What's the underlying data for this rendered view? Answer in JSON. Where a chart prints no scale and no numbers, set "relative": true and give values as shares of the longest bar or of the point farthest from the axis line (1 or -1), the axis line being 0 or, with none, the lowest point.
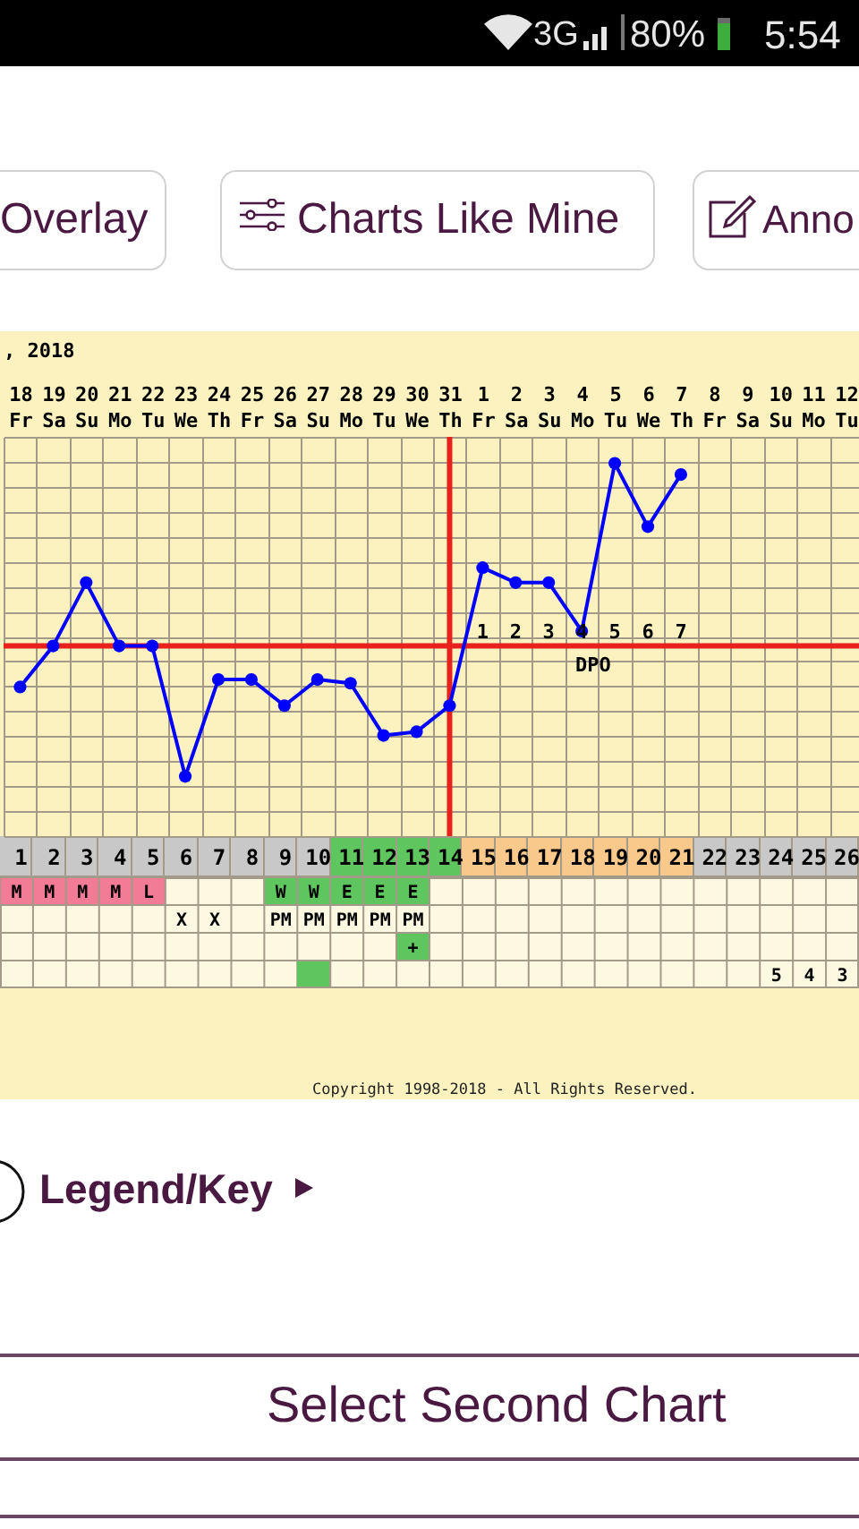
{
  "chart_data": [
    {
      "type": "line",
      "title": ", 2018",
      "x": [
        1,
        2,
        3,
        4,
        5,
        6,
        7,
        8,
        9,
        10,
        11,
        12,
        13,
        14,
        15,
        16,
        17,
        18,
        19,
        20,
        21
      ],
      "values": [
        0.4,
        0.51,
        0.68,
        0.51,
        0.51,
        0.16,
        0.42,
        0.42,
        0.35,
        0.42,
        0.41,
        0.27,
        0.28,
        0.35,
        0.72,
        0.68,
        0.68,
        0.55,
        1,
        0.83,
        0.97
      ],
      "xlim": [
        0.5,
        26.5
      ],
      "xticks": [
        1,
        2,
        3,
        4,
        5,
        6,
        7,
        8,
        9,
        10,
        11,
        12,
        13,
        14,
        15,
        16,
        17,
        18,
        19,
        20,
        21,
        22,
        23,
        24,
        25,
        26
      ],
      "x2lim": [
        "2018-05-17T12:00",
        "2018-06-12T12:00"
      ],
      "x2ticks": [
        {
          "value": "2018-05-18",
          "label": "18 Fr"
        },
        {
          "value": "2018-05-19",
          "label": "19 Sa"
        },
        {
          "value": "2018-05-20",
          "label": "20 Su"
        },
        {
          "value": "2018-05-21",
          "label": "21 Mo"
        },
        {
          "value": "2018-05-22",
          "label": "22 Tu"
        },
        {
          "value": "2018-05-23",
          "label": "23 We"
        },
        {
          "value": "2018-05-24",
          "label": "24 Th"
        },
        {
          "value": "2018-05-25",
          "label": "25 Fr"
        },
        {
          "value": "2018-05-26",
          "label": "26 Sa"
        },
        {
          "value": "2018-05-27",
          "label": "27 Su"
        },
        {
          "value": "2018-05-28",
          "label": "28 Mo"
        },
        {
          "value": "2018-05-29",
          "label": "29 Tu"
        },
        {
          "value": "2018-05-30",
          "label": "30 We"
        },
        {
          "value": "2018-05-31",
          "label": "31 Th"
        },
        {
          "value": "2018-06-01",
          "label": "1 Fr"
        },
        {
          "value": "2018-06-02",
          "label": "2 Sa"
        },
        {
          "value": "2018-06-03",
          "label": "3 Su"
        },
        {
          "value": "2018-06-04",
          "label": "4 Mo"
        },
        {
          "value": "2018-06-05",
          "label": "5 Tu"
        },
        {
          "value": "2018-06-06",
          "label": "6 We"
        },
        {
          "value": "2018-06-07",
          "label": "7 Th"
        },
        {
          "value": "2018-06-08",
          "label": "8 Fr"
        },
        {
          "value": "2018-06-09",
          "label": "9 Sa"
        },
        {
          "value": "2018-06-10",
          "label": "10 Su"
        },
        {
          "value": "2018-06-11",
          "label": "11 Mo"
        },
        {
          "value": "2018-06-12",
          "label": "12 Tu"
        }
      ],
      "color": "#0000ff",
      "relative": true,
      "marker": "circle",
      "grid": true,
      "ref_lines": [
        {
          "axis": "y",
          "value": 0.51,
          "color": "#e8211c"
        },
        {
          "axis": "x",
          "value": 14,
          "color": "#e8211c"
        }
      ],
      "annotations": [
        "1",
        "2",
        "3",
        "4",
        "5",
        "6",
        "7",
        "DPO"
      ]
    },
    {
      "type": "other",
      "cell_labels": [
        [
          null,
          null,
          null,
          null,
          null,
          null,
          null,
          null,
          null,
          null,
          null,
          null,
          null,
          null,
          null,
          null,
          null,
          null,
          null,
          null,
          null,
          null,
          null,
          null,
          null,
          null
        ],
        [
          "M",
          "M",
          "M",
          "M",
          "L",
          null,
          null,
          null,
          "W",
          "W",
          "E",
          "E",
          "E",
          null,
          null,
          null,
          null,
          null,
          null,
          null,
          null,
          null,
          null,
          null,
          null,
          null
        ],
        [
          null,
          null,
          null,
          null,
          null,
          "X",
          "X",
          null,
          "PM",
          "PM",
          "PM",
          "PM",
          "PM",
          null,
          null,
          null,
          null,
          null,
          null,
          null,
          null,
          null,
          null,
          null,
          null,
          null
        ],
        [
          null,
          null,
          null,
          null,
          null,
          null,
          null,
          null,
          null,
          null,
          null,
          null,
          "+",
          null,
          null,
          null,
          null,
          null,
          null,
          null,
          null,
          null,
          null,
          null,
          null,
          null
        ],
        [
          null,
          null,
          null,
          null,
          null,
          null,
          null,
          null,
          null,
          null,
          null,
          null,
          null,
          null,
          null,
          null,
          null,
          null,
          null,
          null,
          null,
          null,
          null,
          "5",
          "4",
          "3"
        ]
      ],
      "colors": [
        [
          "#c8c8c8",
          "#c8c8c8",
          "#c8c8c8",
          "#c8c8c8",
          "#c8c8c8",
          "#c8c8c8",
          "#c8c8c8",
          "#c8c8c8",
          "#c8c8c8",
          "#c8c8c8",
          "#5fc65f",
          "#5fc65f",
          "#5fc65f",
          "#5fc65f",
          "#f9c98b",
          "#f9c98b",
          "#f9c98b",
          "#f9c98b",
          "#f9c98b",
          "#f9c98b",
          "#f9c98b",
          "#c8c8c8",
          "#c8c8c8",
          "#c8c8c8",
          "#c8c8c8",
          "#c8c8c8"
        ],
        [
          "#f27c95",
          "#f27c95",
          "#f27c95",
          "#f27c95",
          "#f27c95",
          null,
          null,
          null,
          "#5fc65f",
          "#5fc65f",
          "#5fc65f",
          "#5fc65f",
          "#5fc65f",
          null,
          null,
          null,
          null,
          null,
          null,
          null,
          null,
          null,
          null,
          null,
          null,
          null
        ],
        [
          null,
          null,
          null,
          null,
          null,
          null,
          null,
          null,
          null,
          null,
          null,
          null,
          null,
          null,
          null,
          null,
          null,
          null,
          null,
          null,
          null,
          null,
          null,
          null,
          null,
          null
        ],
        [
          null,
          null,
          null,
          null,
          null,
          null,
          null,
          null,
          null,
          null,
          null,
          null,
          "#5fc65f",
          null,
          null,
          null,
          null,
          null,
          null,
          null,
          null,
          null,
          null,
          null,
          null,
          null
        ],
        [
          null,
          null,
          null,
          null,
          null,
          null,
          null,
          null,
          null,
          "#5fc65f",
          null,
          null,
          null,
          null,
          null,
          null,
          null,
          null,
          null,
          null,
          null,
          null,
          null,
          null,
          null,
          null
        ]
      ],
      "annotations": [
        "Copyright 1998-2018 - All Rights Reserved."
      ]
    },
    {
      "type": "other",
      "annotations": [
        "3G",
        "80%",
        "5:54",
        "Overlay",
        "Charts Like Mine",
        "Anno",
        "Legend/Key",
        "Select Second Chart"
      ]
    }
  ]
}
